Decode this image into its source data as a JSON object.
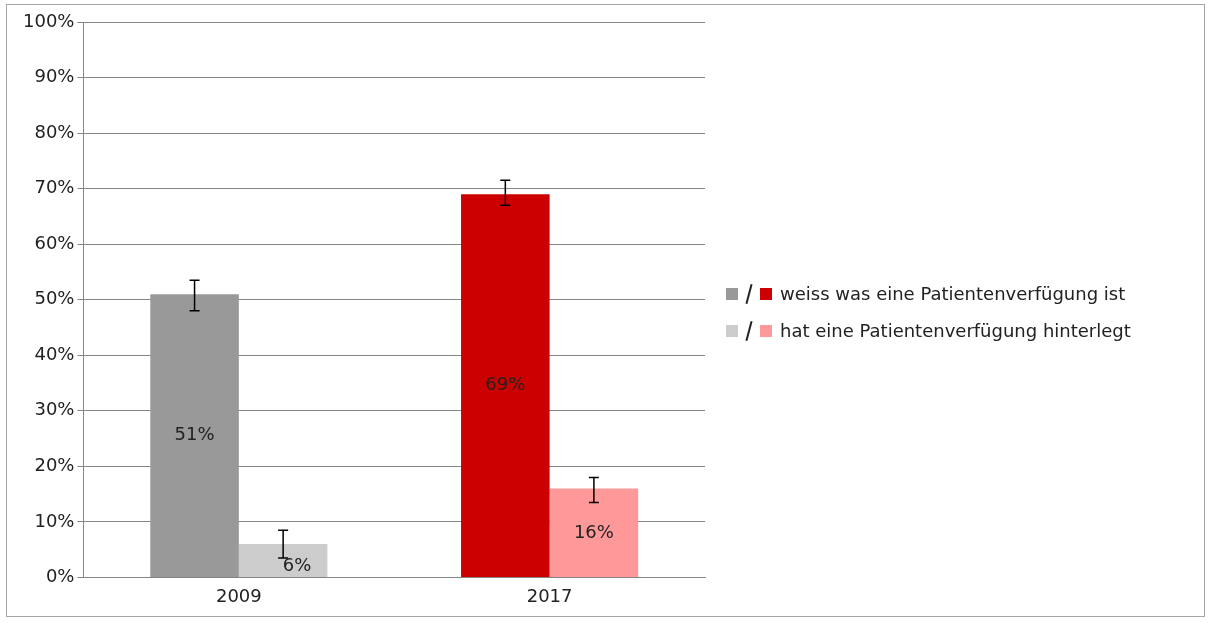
{
  "chart_data": {
    "type": "bar",
    "categories": [
      "2009",
      "2017"
    ],
    "series": [
      {
        "name": "weiss was eine Patientenverfügung ist",
        "colors": [
          "#999999",
          "#cc0000"
        ],
        "values": [
          51,
          69
        ],
        "value_labels": [
          "51%",
          "69%"
        ],
        "errors": [
          [
            48,
            53.5
          ],
          [
            67,
            71.5
          ]
        ]
      },
      {
        "name": "hat eine Patientenverfügung hinterlegt",
        "colors": [
          "#cccccc",
          "#ff9999"
        ],
        "values": [
          6,
          16
        ],
        "value_labels": [
          "6%",
          "16%"
        ],
        "errors": [
          [
            3.5,
            8.5
          ],
          [
            13.5,
            18
          ]
        ]
      }
    ],
    "ylim": [
      0,
      100
    ],
    "yticks": [
      {
        "value": 0,
        "label": "0%"
      },
      {
        "value": 10,
        "label": "10%"
      },
      {
        "value": 20,
        "label": "20%"
      },
      {
        "value": 30,
        "label": "30%"
      },
      {
        "value": 40,
        "label": "40%"
      },
      {
        "value": 50,
        "label": "50%"
      },
      {
        "value": 60,
        "label": "60%"
      },
      {
        "value": 70,
        "label": "70%"
      },
      {
        "value": 80,
        "label": "80%"
      },
      {
        "value": 90,
        "label": "90%"
      },
      {
        "value": 100,
        "label": "100%"
      }
    ],
    "grid": "y",
    "legend": "right"
  }
}
